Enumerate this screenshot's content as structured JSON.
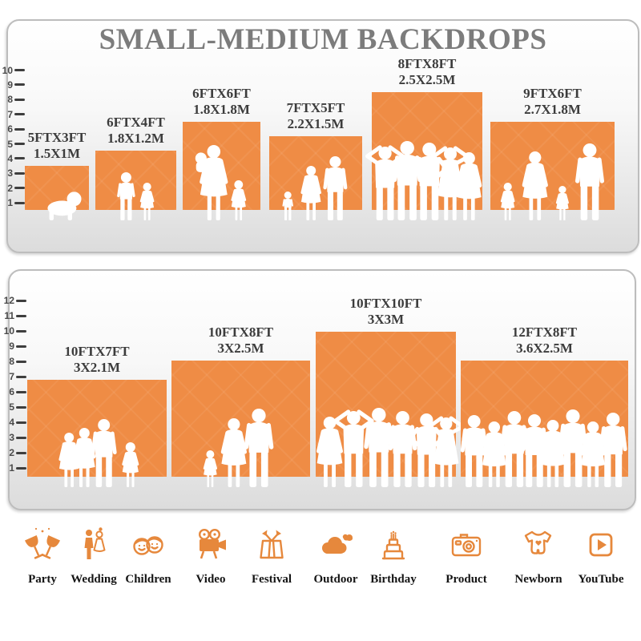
{
  "title": "SMALL-MEDIUM BACKDROPS",
  "panels": [
    {
      "name": "small-medium-backdrops",
      "ruler_values": [
        "1",
        "2",
        "3",
        "4",
        "5",
        "6",
        "7",
        "8",
        "9",
        "10"
      ],
      "backdrops": [
        {
          "size_ft": "5FTX3FT",
          "size_m": "1.5X1M",
          "width_ft": 5,
          "height_ft": 3,
          "people": [
            "crawling-baby"
          ]
        },
        {
          "size_ft": "6FTX4FT",
          "size_m": "1.8X1.2M",
          "width_ft": 6,
          "height_ft": 4,
          "people": [
            "boy",
            "girl"
          ]
        },
        {
          "size_ft": "6FTX6FT",
          "size_m": "1.8X1.8M",
          "width_ft": 6,
          "height_ft": 6,
          "people": [
            "mother-holding-child",
            "girl"
          ]
        },
        {
          "size_ft": "7FTX5FT",
          "size_m": "2.2X1.5M",
          "width_ft": 7,
          "height_ft": 5,
          "people": [
            "toddler",
            "woman",
            "man"
          ]
        },
        {
          "size_ft": "8FTX8FT",
          "size_m": "2.5X2.5M",
          "width_ft": 8,
          "height_ft": 8,
          "people": [
            "man-arms-up",
            "man",
            "man-akimbo",
            "woman-arms-up",
            "woman"
          ]
        },
        {
          "size_ft": "9FTX6FT",
          "size_m": "2.7X1.8M",
          "width_ft": 9,
          "height_ft": 6,
          "people": [
            "girl",
            "woman",
            "girl",
            "man"
          ]
        }
      ]
    },
    {
      "name": "large-backdrops",
      "ruler_values": [
        "1",
        "2",
        "3",
        "4",
        "5",
        "6",
        "7",
        "8",
        "9",
        "10",
        "11",
        "12"
      ],
      "backdrops": [
        {
          "size_ft": "10FTX7FT",
          "size_m": "3X2.1M",
          "width_ft": 10,
          "height_ft": 7,
          "people": [
            "woman",
            "woman",
            "man",
            "girl"
          ]
        },
        {
          "size_ft": "10FTX8FT",
          "size_m": "3X2.5M",
          "width_ft": 10,
          "height_ft": 8,
          "people": [
            "girl",
            "woman",
            "man"
          ]
        },
        {
          "size_ft": "10FTX10FT",
          "size_m": "3X3M",
          "width_ft": 10,
          "height_ft": 10,
          "people": [
            "woman",
            "man-arms-up",
            "man",
            "man",
            "man-akimbo",
            "woman-arms-up"
          ]
        },
        {
          "size_ft": "12FTX8FT",
          "size_m": "3.6X2.5M",
          "width_ft": 12,
          "height_ft": 8,
          "people": [
            "man",
            "woman",
            "man",
            "man",
            "woman",
            "man",
            "woman",
            "man"
          ]
        }
      ]
    }
  ],
  "categories": [
    {
      "label": "Party",
      "icon": "party-icon"
    },
    {
      "label": "Wedding",
      "icon": "wedding-icon"
    },
    {
      "label": "Children",
      "icon": "children-icon"
    },
    {
      "label": "Video",
      "icon": "video-icon"
    },
    {
      "label": "Festival",
      "icon": "festival-icon"
    },
    {
      "label": "Outdoor",
      "icon": "outdoor-icon"
    },
    {
      "label": "Birthday",
      "icon": "birthday-icon"
    },
    {
      "label": "Product",
      "icon": "product-icon"
    },
    {
      "label": "Newborn",
      "icon": "newborn-icon"
    },
    {
      "label": "YouTube",
      "icon": "youtube-icon"
    }
  ],
  "colors": {
    "backdrop_orange": "#EF8C45",
    "title_gray": "#7C7C7C",
    "label_dark": "#3C3C3C",
    "icon_orange": "#E6883C",
    "panel_border": "#BDBDBD",
    "silhouette_white": "#FFFFFF"
  }
}
